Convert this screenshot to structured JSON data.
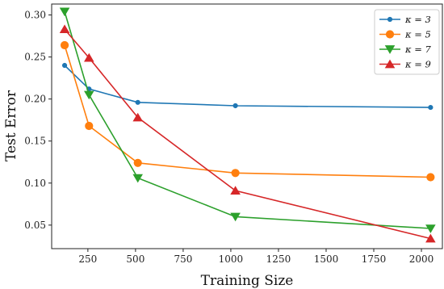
{
  "chart_data": {
    "type": "line",
    "title": "",
    "xlabel": "Training Size",
    "ylabel": "Test Error",
    "xlim": [
      60,
      2110
    ],
    "ylim": [
      0.022,
      0.313
    ],
    "xticks": [
      250,
      500,
      750,
      1000,
      1250,
      1500,
      1750,
      2000
    ],
    "xtick_labels": [
      "250",
      "500",
      "750",
      "1000",
      "1250",
      "1500",
      "1750",
      "2000"
    ],
    "yticks": [
      0.05,
      0.1,
      0.15,
      0.2,
      0.25,
      0.3
    ],
    "ytick_labels": [
      "0.05",
      "0.10",
      "0.15",
      "0.20",
      "0.25",
      "0.30"
    ],
    "grid": false,
    "legend_position": "top-right",
    "x": [
      128,
      256,
      512,
      1024,
      2048
    ],
    "series": [
      {
        "name": "κ = 3",
        "color": "#1f77b4",
        "marker": "point",
        "values": [
          0.24,
          0.212,
          0.196,
          0.192,
          0.19
        ]
      },
      {
        "name": "κ = 5",
        "color": "#ff7f0e",
        "marker": "circle",
        "values": [
          0.264,
          0.168,
          0.124,
          0.112,
          0.107
        ]
      },
      {
        "name": "κ = 7",
        "color": "#2ca02c",
        "marker": "triangle-down",
        "values": [
          0.304,
          0.205,
          0.106,
          0.06,
          0.046
        ]
      },
      {
        "name": "κ = 9",
        "color": "#d62728",
        "marker": "triangle-up",
        "values": [
          0.283,
          0.249,
          0.178,
          0.091,
          0.034
        ]
      }
    ]
  }
}
